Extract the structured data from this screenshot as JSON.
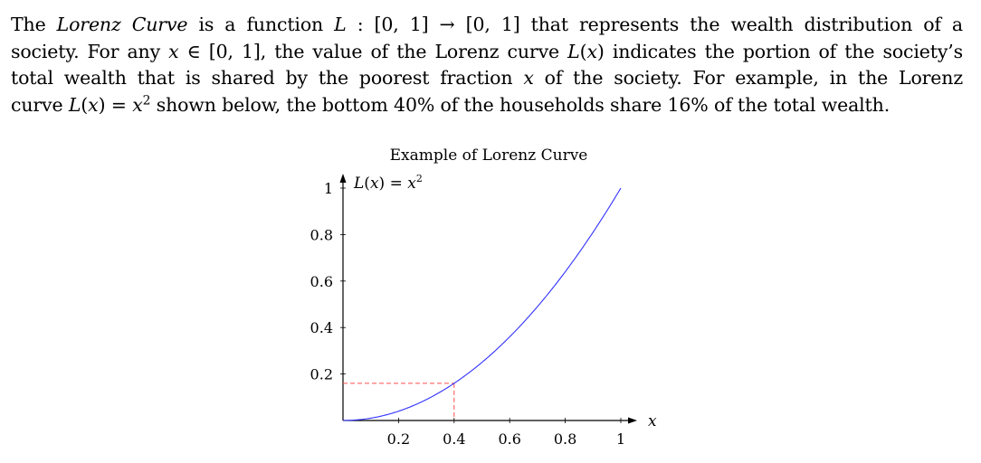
{
  "paragraph": {
    "lines": [
      [
        {
          "t": "The "
        },
        {
          "t": "Lorenz Curve",
          "i": true
        },
        {
          "t": " is a function "
        },
        {
          "t": "L",
          "i": true
        },
        {
          "t": " : [0, 1] → [0, 1] that represents the wealth distribution of a"
        }
      ],
      [
        {
          "t": "society. For any "
        },
        {
          "t": "x",
          "i": true
        },
        {
          "t": " ∈ [0, 1], the value of the Lorenz curve "
        },
        {
          "t": "L",
          "i": true
        },
        {
          "t": "("
        },
        {
          "t": "x",
          "i": true
        },
        {
          "t": ") indicates the portion of the society’s"
        }
      ],
      [
        {
          "t": "total wealth that is shared by the poorest fraction "
        },
        {
          "t": "x",
          "i": true
        },
        {
          "t": " of the society. For example, in the Lorenz"
        }
      ],
      [
        {
          "t": "curve "
        },
        {
          "t": "L",
          "i": true
        },
        {
          "t": "("
        },
        {
          "t": "x",
          "i": true
        },
        {
          "t": ") = "
        },
        {
          "t": "x",
          "i": true
        },
        {
          "t": "2",
          "sup": true
        },
        {
          "t": " shown below, the bottom 40% of the households share 16% of the total wealth."
        }
      ]
    ]
  },
  "chart_data": {
    "type": "line",
    "title": "Example of Lorenz Curve",
    "function": "L(x) = x^2",
    "curve_label": {
      "name": "L",
      "arg": "x",
      "rhs": "x",
      "exp": "2"
    },
    "xlabel": "x",
    "xlim": [
      0,
      1
    ],
    "ylim": [
      0,
      1
    ],
    "xticks": [
      {
        "value": 0.2,
        "label": "0.2"
      },
      {
        "value": 0.4,
        "label": "0.4"
      },
      {
        "value": 0.6,
        "label": "0.6"
      },
      {
        "value": 0.8,
        "label": "0.8"
      },
      {
        "value": 1,
        "label": "1"
      }
    ],
    "yticks": [
      {
        "value": 0.2,
        "label": "0.2"
      },
      {
        "value": 0.4,
        "label": "0.4"
      },
      {
        "value": 0.6,
        "label": "0.6"
      },
      {
        "value": 0.8,
        "label": "0.8"
      },
      {
        "value": 1,
        "label": "1"
      }
    ],
    "series": [
      {
        "color": "#3333ff",
        "x": [
          0,
          0.1,
          0.2,
          0.3,
          0.4,
          0.5,
          0.6,
          0.7,
          0.8,
          0.9,
          1
        ],
        "y": [
          0,
          0.01,
          0.04,
          0.09,
          0.16,
          0.25,
          0.36,
          0.49,
          0.64,
          0.81,
          1
        ]
      }
    ],
    "highlight_point": {
      "x": 0.4,
      "y": 0.16,
      "color": "#ff4d4d",
      "style": "dashed"
    },
    "grid": false
  }
}
